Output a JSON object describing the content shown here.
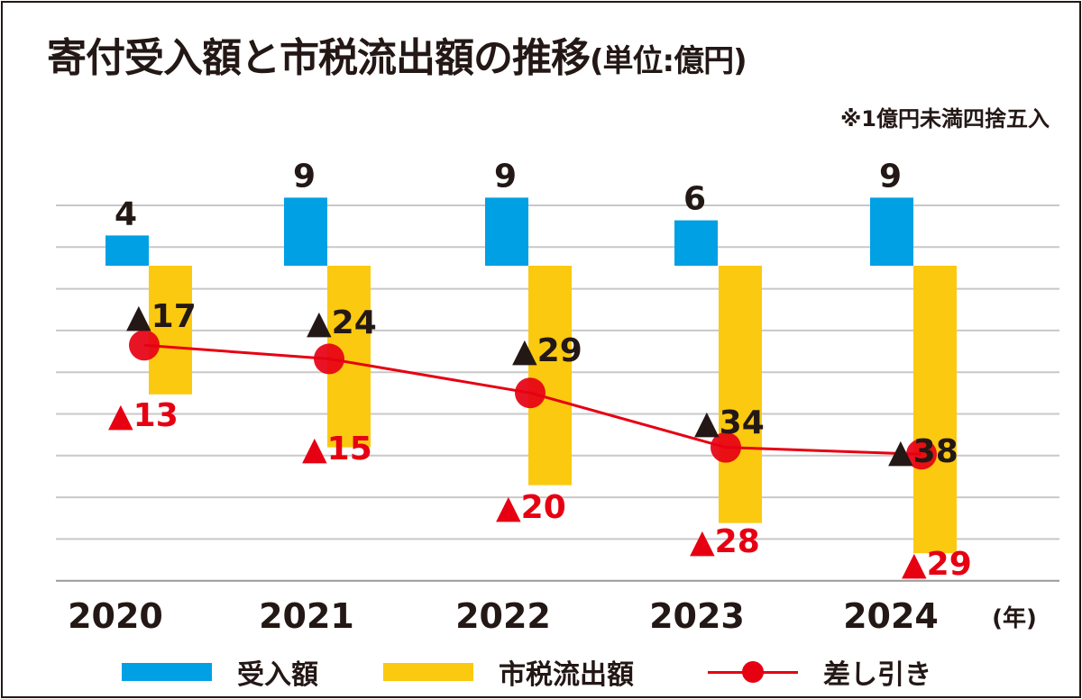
{
  "title": "寄付受入額と市税流出額の推移",
  "unit": "(単位:億円)",
  "note": "※1億円未満四捨五入",
  "chart_data": {
    "type": "bar",
    "title": "寄付受入額と市税流出額の推移",
    "categories": [
      "2020",
      "2021",
      "2022",
      "2023",
      "2024"
    ],
    "x_unit": "(年)",
    "series": [
      {
        "name": "受入額",
        "type": "bar",
        "color": "#00a0e4",
        "values": [
          4,
          9,
          9,
          6,
          9
        ],
        "labels": [
          "4",
          "9",
          "9",
          "6",
          "9"
        ]
      },
      {
        "name": "市税流出額",
        "type": "bar",
        "color": "#fbc90f",
        "values": [
          -17,
          -24,
          -29,
          -34,
          -38
        ],
        "labels": [
          "▲17",
          "▲24",
          "▲29",
          "▲34",
          "▲38"
        ]
      },
      {
        "name": "差し引き",
        "type": "line",
        "color": "#e60012",
        "values": [
          -13,
          -15,
          -20,
          -28,
          -29
        ],
        "labels": [
          "▲13",
          "▲15",
          "▲20",
          "▲28",
          "▲29"
        ]
      }
    ],
    "grid": true,
    "legend": "bottom"
  }
}
